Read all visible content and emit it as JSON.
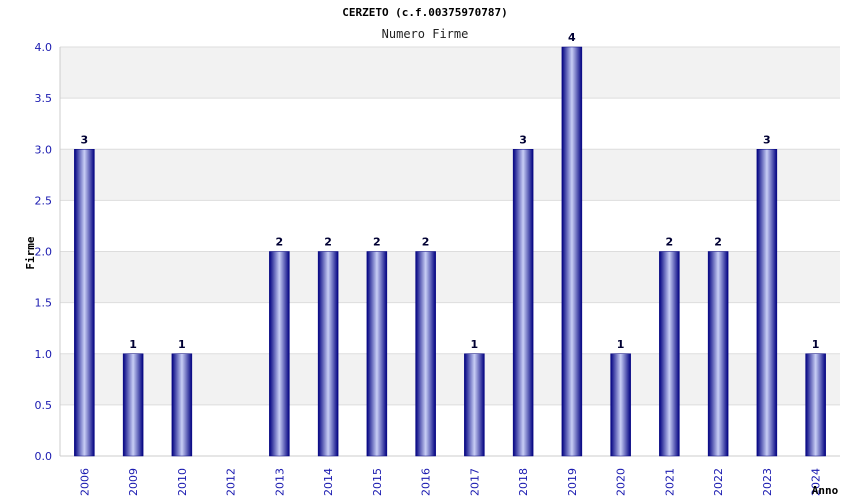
{
  "chart_data": {
    "type": "bar",
    "title": "CERZETO (c.f.00375970787)",
    "subtitle": "Numero Firme",
    "xlabel": "Anno",
    "ylabel": "Firme",
    "categories": [
      "2006",
      "2009",
      "2010",
      "2012",
      "2013",
      "2014",
      "2015",
      "2016",
      "2017",
      "2018",
      "2019",
      "2020",
      "2021",
      "2022",
      "2023",
      "2024"
    ],
    "values": [
      3,
      1,
      1,
      0,
      2,
      2,
      2,
      2,
      1,
      3,
      4,
      1,
      2,
      2,
      3,
      1
    ],
    "data_labels": [
      "3",
      "1",
      "1",
      "",
      "2",
      "2",
      "2",
      "2",
      "1",
      "3",
      "4",
      "1",
      "2",
      "2",
      "3",
      "1"
    ],
    "ylim": [
      0,
      4.0
    ],
    "yticks": [
      "0.0",
      "0.5",
      "1.0",
      "1.5",
      "2.0",
      "2.5",
      "3.0",
      "3.5",
      "4.0"
    ],
    "grid": true,
    "colors": {
      "bar_dark": "#000080",
      "bar_light": "#c8cef5",
      "band": "#f2f2f2",
      "tick_text": "#1a1ab0"
    }
  }
}
